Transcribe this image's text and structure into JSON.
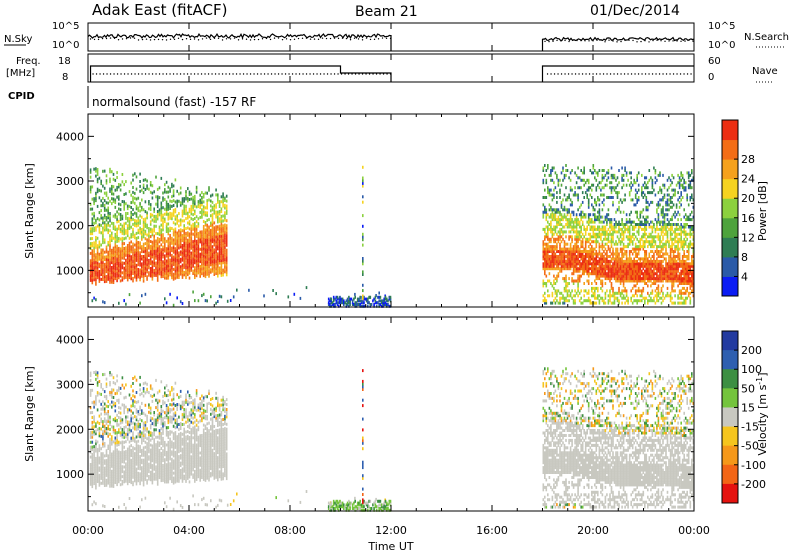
{
  "header": {
    "station": "Adak East (fitACF)",
    "beam": "Beam 21",
    "date": "01/Dec/2014"
  },
  "params": {
    "nsky_label": "N.Sky",
    "nsky_ticks": [
      "10^5",
      "10^0"
    ],
    "nsearch_label": "N.Search",
    "nsearch_ticks": [
      "10^5",
      "10^0"
    ],
    "freq_label": "Freq.",
    "freq_unit": "[MHz]",
    "freq_ticks": [
      "18",
      "8"
    ],
    "nave_label": "Nave",
    "nave_ticks": [
      "60",
      "0"
    ],
    "cpid_label": "CPID",
    "cpid_text": "normalsound (fast) -157 RF"
  },
  "time_axis": {
    "label": "Time UT",
    "ticks": [
      "00:00",
      "04:00",
      "08:00",
      "12:00",
      "16:00",
      "20:00",
      "00:00"
    ]
  },
  "panels": [
    {
      "ylabel": "Slant Range [km]",
      "yticks": [
        "1000",
        "2000",
        "3000",
        "4000"
      ]
    },
    {
      "ylabel": "Slant Range [km]",
      "yticks": [
        "1000",
        "2000",
        "3000",
        "4000"
      ]
    }
  ],
  "colorbars": {
    "power": {
      "label": "Power [dB]",
      "ticks": [
        "4",
        "8",
        "12",
        "16",
        "20",
        "24",
        "28"
      ],
      "colors": [
        "#0b1cf4",
        "#2a5aa8",
        "#2f7d54",
        "#4ea33c",
        "#8cd13e",
        "#f5d320",
        "#f5a11c",
        "#f36d16",
        "#ec2e12"
      ]
    },
    "velocity": {
      "label": "Velocity [m s",
      "label_sup": "-1",
      "label_end": "]",
      "ticks": [
        "200",
        "100",
        "50",
        "15",
        "-15",
        "-50",
        "-100",
        "-200"
      ],
      "colors": [
        "#223aa0",
        "#2e5fb0",
        "#3c8f42",
        "#74c43c",
        "#c8c8c0",
        "#f5c51e",
        "#f5981a",
        "#f36516",
        "#e5120f"
      ]
    }
  },
  "chart_data": [
    {
      "type": "heatmap",
      "title": "Power",
      "xlabel": "Time UT",
      "ylabel": "Slant Range [km]",
      "xlim": [
        "00:00",
        "24:00"
      ],
      "ylim": [
        180,
        4500
      ],
      "colorbar_label": "Power [dB]",
      "colorbar_ticks": [
        4,
        8,
        12,
        16,
        20,
        24,
        28
      ],
      "regions": [
        {
          "name": "night band A",
          "x_range": [
            "00:00",
            "05:30"
          ],
          "range_km": [
            800,
            3500
          ],
          "peak_range_km": [
            900,
            1400
          ],
          "peak_power_db": 28
        },
        {
          "name": "near-range near-noon",
          "x_range": [
            "09:30",
            "12:00"
          ],
          "range_km": [
            250,
            450
          ],
          "power_db": 4
        },
        {
          "name": "spike",
          "x": "10:50",
          "range_km": [
            200,
            3400
          ],
          "power_db": 12
        },
        {
          "name": "evening band B",
          "x_range": [
            "18:00",
            "24:00"
          ],
          "range_km": [
            300,
            3500
          ],
          "peak_range_km": [
            700,
            1300
          ],
          "peak_power_db": 28
        }
      ]
    },
    {
      "type": "heatmap",
      "title": "Velocity",
      "xlabel": "Time UT",
      "ylabel": "Slant Range [km]",
      "xlim": [
        "00:00",
        "24:00"
      ],
      "ylim": [
        180,
        4500
      ],
      "colorbar_label": "Velocity [m s-1]",
      "colorbar_ticks": [
        200,
        100,
        50,
        15,
        -15,
        -50,
        -100,
        -200
      ],
      "regions": [
        {
          "name": "night band A",
          "x_range": [
            "00:00",
            "05:30"
          ],
          "range_km": [
            800,
            3500
          ],
          "dominant_velocity": "-15..15 (ground scatter grey)"
        },
        {
          "name": "near-range near-noon",
          "x_range": [
            "10:00",
            "12:00"
          ],
          "range_km": [
            200,
            450
          ],
          "velocity_ms": 50
        },
        {
          "name": "evening band B",
          "x_range": [
            "18:00",
            "24:00"
          ],
          "range_km": [
            300,
            3500
          ],
          "dominant_velocity": "-15..15 (ground scatter grey)"
        }
      ]
    }
  ]
}
